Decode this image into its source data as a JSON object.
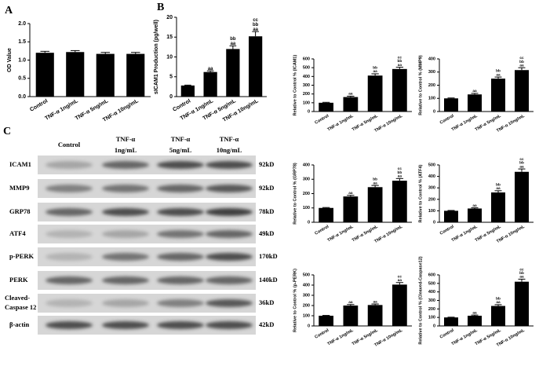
{
  "panels": [
    "A",
    "B",
    "C"
  ],
  "chart_data": [
    {
      "type": "bar",
      "ylabel": "OD Value",
      "categories": [
        "Control",
        "TNF-α 1ng/mL",
        "TNF-α 5ng/mL",
        "TNF-α 10ng/mL"
      ],
      "values": [
        1.2,
        1.22,
        1.17,
        1.17
      ],
      "errors": [
        0.04,
        0.04,
        0.04,
        0.04
      ],
      "annotations": [
        [],
        [],
        [],
        []
      ],
      "ylim": [
        0,
        2
      ],
      "yticks": [
        {
          "value": 0,
          "label": "0.0"
        },
        {
          "value": 0.5,
          "label": "0.5"
        },
        {
          "value": 1,
          "label": "1.0"
        },
        {
          "value": 1.5,
          "label": "1.5"
        },
        {
          "value": 2,
          "label": "2.0"
        }
      ],
      "color": "#000000"
    },
    {
      "type": "bar",
      "ylabel": "sICAM1 Production (pg/well)",
      "categories": [
        "Control",
        "TNF-α 1ng/mL",
        "TNF-α 5ng/mL",
        "TNF-α 10ng/mL"
      ],
      "values": [
        2.8,
        6.2,
        12,
        15.2
      ],
      "errors": [
        0.1,
        0.3,
        0.8,
        1.2
      ],
      "annotations": [
        [],
        [
          "aa"
        ],
        [
          "bb",
          "aa"
        ],
        [
          "cc",
          "bb",
          "aa"
        ]
      ],
      "ylim": [
        0,
        20
      ],
      "yticks": [
        0,
        5,
        10,
        15,
        20
      ],
      "color": "#000000"
    },
    {
      "type": "bar",
      "ylabel": "Relative to Control % (ICAM1)",
      "categories": [
        "Control",
        "TNF-α 1ng/mL",
        "TNF-α 5ng/mL",
        "TNF-α 10ng/mL"
      ],
      "values": [
        100,
        165,
        410,
        485
      ],
      "errors": [
        5,
        10,
        20,
        20
      ],
      "annotations": [
        [],
        [
          "aa"
        ],
        [
          "bb",
          "aa"
        ],
        [
          "cc",
          "bb",
          "aa"
        ]
      ],
      "ylim": [
        0,
        600
      ],
      "yticks": [
        0,
        100,
        200,
        300,
        400,
        500,
        600
      ],
      "color": "#000000"
    },
    {
      "type": "bar",
      "ylabel": "Relative to Control % (MMP9)",
      "categories": [
        "Control",
        "TNF-α 1ng/mL",
        "TNF-α 5ng/mL",
        "TNF-α 10ng/mL"
      ],
      "values": [
        100,
        130,
        250,
        315
      ],
      "errors": [
        3,
        8,
        12,
        18
      ],
      "annotations": [
        [],
        [
          "aa"
        ],
        [
          "bb",
          "aa"
        ],
        [
          "cc",
          "bb",
          "aa"
        ]
      ],
      "ylim": [
        0,
        400
      ],
      "yticks": [
        0,
        100,
        200,
        300,
        400
      ],
      "color": "#000000"
    },
    {
      "type": "bar",
      "ylabel": "Relative to Control % (GRP78)",
      "categories": [
        "Control",
        "TNF-α 1ng/mL",
        "TNF-α 5ng/mL",
        "TNF-α 10ng/mL"
      ],
      "values": [
        100,
        180,
        245,
        290
      ],
      "errors": [
        3,
        8,
        12,
        15
      ],
      "annotations": [
        [],
        [
          "aa"
        ],
        [
          "bb",
          "aa"
        ],
        [
          "cc",
          "bb",
          "aa"
        ]
      ],
      "ylim": [
        0,
        400
      ],
      "yticks": [
        0,
        100,
        200,
        300,
        400
      ],
      "color": "#000000"
    },
    {
      "type": "bar",
      "ylabel": "Relative to Control % (ATF4)",
      "categories": [
        "Control",
        "TNF-α 1ng/mL",
        "TNF-α 5ng/mL",
        "TNF-α 10ng/mL"
      ],
      "values": [
        100,
        120,
        260,
        440
      ],
      "errors": [
        3,
        6,
        15,
        25
      ],
      "annotations": [
        [],
        [
          "aa"
        ],
        [
          "bb",
          "aa"
        ],
        [
          "cc",
          "bb",
          "aa"
        ]
      ],
      "ylim": [
        0,
        500
      ],
      "yticks": [
        0,
        100,
        200,
        300,
        400,
        500
      ],
      "color": "#000000"
    },
    {
      "type": "bar",
      "ylabel": "Relative to Control % (p-PERK)",
      "categories": [
        "Control",
        "TNF-α 1ng/mL",
        "TNF-α 5ng/mL",
        "TNF-α 10ng/mL"
      ],
      "values": [
        100,
        200,
        205,
        405
      ],
      "errors": [
        3,
        10,
        10,
        20
      ],
      "annotations": [
        [],
        [
          "aa"
        ],
        [
          "aa"
        ],
        [
          "cc",
          "aa"
        ]
      ],
      "ylim": [
        0,
        500
      ],
      "yticks": [
        0,
        100,
        200,
        300,
        400,
        500
      ],
      "color": "#000000"
    },
    {
      "type": "bar",
      "ylabel": "Relative to Control % (Cleaved-Caspase12)",
      "categories": [
        "Control",
        "TNF-α 1ng/mL",
        "TNF-α 5ng/mL",
        "TNF-α 10ng/mL"
      ],
      "values": [
        100,
        120,
        235,
        520
      ],
      "errors": [
        3,
        8,
        15,
        30
      ],
      "annotations": [
        [],
        [
          "aa"
        ],
        [
          "bb",
          "aa"
        ],
        [
          "cc",
          "bb",
          "aa"
        ]
      ],
      "ylim": [
        0,
        600
      ],
      "yticks": [
        0,
        100,
        200,
        300,
        400,
        500,
        600
      ],
      "color": "#000000"
    }
  ],
  "blot": {
    "columns": [
      [
        "Control"
      ],
      [
        "TNF-α",
        "1ng/mL"
      ],
      [
        "TNF-α",
        "5ng/mL"
      ],
      [
        "TNF-α",
        "10ng/mL"
      ]
    ],
    "rows": [
      {
        "label": [
          "ICAM1"
        ],
        "size": "92kD"
      },
      {
        "label": [
          "MMP9"
        ],
        "size": "92kD"
      },
      {
        "label": [
          "GRP78"
        ],
        "size": "78kD"
      },
      {
        "label": [
          "ATF4"
        ],
        "size": "49kD"
      },
      {
        "label": [
          "p-PERK"
        ],
        "size": "170kD"
      },
      {
        "label": [
          "PERK"
        ],
        "size": "140kD"
      },
      {
        "label": [
          "Cleaved-",
          "Caspase 12"
        ],
        "size": "36kD"
      },
      {
        "label": [
          "β-actin"
        ],
        "size": "42kD"
      }
    ]
  }
}
